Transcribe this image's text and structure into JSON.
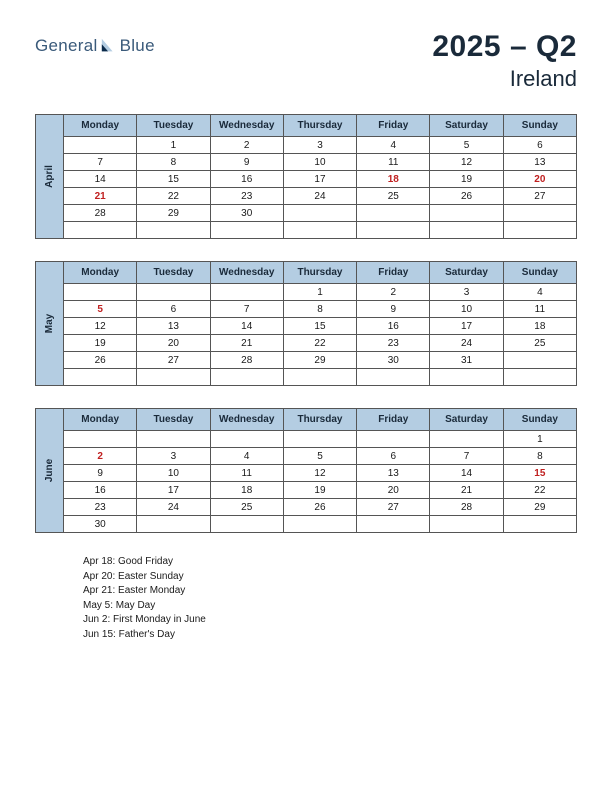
{
  "logo": {
    "text_left": "General",
    "text_right": "Blue"
  },
  "title": {
    "year_quarter": "2025 – Q2",
    "country": "Ireland"
  },
  "day_headers": [
    "Monday",
    "Tuesday",
    "Wednesday",
    "Thursday",
    "Friday",
    "Saturday",
    "Sunday"
  ],
  "colors": {
    "header_bg": "#b4cde2",
    "border": "#555555",
    "text": "#1a2a3a",
    "holiday": "#c02020",
    "logo": "#3a5a7a",
    "logo_accent": "#0a2a4a"
  },
  "months": [
    {
      "name": "April",
      "weeks": [
        [
          {
            "n": ""
          },
          {
            "n": "1"
          },
          {
            "n": "2"
          },
          {
            "n": "3"
          },
          {
            "n": "4"
          },
          {
            "n": "5"
          },
          {
            "n": "6"
          }
        ],
        [
          {
            "n": "7"
          },
          {
            "n": "8"
          },
          {
            "n": "9"
          },
          {
            "n": "10"
          },
          {
            "n": "11"
          },
          {
            "n": "12"
          },
          {
            "n": "13"
          }
        ],
        [
          {
            "n": "14"
          },
          {
            "n": "15"
          },
          {
            "n": "16"
          },
          {
            "n": "17"
          },
          {
            "n": "18",
            "h": true
          },
          {
            "n": "19"
          },
          {
            "n": "20",
            "h": true
          }
        ],
        [
          {
            "n": "21",
            "h": true
          },
          {
            "n": "22"
          },
          {
            "n": "23"
          },
          {
            "n": "24"
          },
          {
            "n": "25"
          },
          {
            "n": "26"
          },
          {
            "n": "27"
          }
        ],
        [
          {
            "n": "28"
          },
          {
            "n": "29"
          },
          {
            "n": "30"
          },
          {
            "n": ""
          },
          {
            "n": ""
          },
          {
            "n": ""
          },
          {
            "n": ""
          }
        ],
        [
          {
            "n": ""
          },
          {
            "n": ""
          },
          {
            "n": ""
          },
          {
            "n": ""
          },
          {
            "n": ""
          },
          {
            "n": ""
          },
          {
            "n": ""
          }
        ]
      ]
    },
    {
      "name": "May",
      "weeks": [
        [
          {
            "n": ""
          },
          {
            "n": ""
          },
          {
            "n": ""
          },
          {
            "n": "1"
          },
          {
            "n": "2"
          },
          {
            "n": "3"
          },
          {
            "n": "4"
          }
        ],
        [
          {
            "n": "5",
            "h": true
          },
          {
            "n": "6"
          },
          {
            "n": "7"
          },
          {
            "n": "8"
          },
          {
            "n": "9"
          },
          {
            "n": "10"
          },
          {
            "n": "11"
          }
        ],
        [
          {
            "n": "12"
          },
          {
            "n": "13"
          },
          {
            "n": "14"
          },
          {
            "n": "15"
          },
          {
            "n": "16"
          },
          {
            "n": "17"
          },
          {
            "n": "18"
          }
        ],
        [
          {
            "n": "19"
          },
          {
            "n": "20"
          },
          {
            "n": "21"
          },
          {
            "n": "22"
          },
          {
            "n": "23"
          },
          {
            "n": "24"
          },
          {
            "n": "25"
          }
        ],
        [
          {
            "n": "26"
          },
          {
            "n": "27"
          },
          {
            "n": "28"
          },
          {
            "n": "29"
          },
          {
            "n": "30"
          },
          {
            "n": "31"
          },
          {
            "n": ""
          }
        ],
        [
          {
            "n": ""
          },
          {
            "n": ""
          },
          {
            "n": ""
          },
          {
            "n": ""
          },
          {
            "n": ""
          },
          {
            "n": ""
          },
          {
            "n": ""
          }
        ]
      ]
    },
    {
      "name": "June",
      "weeks": [
        [
          {
            "n": ""
          },
          {
            "n": ""
          },
          {
            "n": ""
          },
          {
            "n": ""
          },
          {
            "n": ""
          },
          {
            "n": ""
          },
          {
            "n": "1"
          }
        ],
        [
          {
            "n": "2",
            "h": true
          },
          {
            "n": "3"
          },
          {
            "n": "4"
          },
          {
            "n": "5"
          },
          {
            "n": "6"
          },
          {
            "n": "7"
          },
          {
            "n": "8"
          }
        ],
        [
          {
            "n": "9"
          },
          {
            "n": "10"
          },
          {
            "n": "11"
          },
          {
            "n": "12"
          },
          {
            "n": "13"
          },
          {
            "n": "14"
          },
          {
            "n": "15",
            "h": true
          }
        ],
        [
          {
            "n": "16"
          },
          {
            "n": "17"
          },
          {
            "n": "18"
          },
          {
            "n": "19"
          },
          {
            "n": "20"
          },
          {
            "n": "21"
          },
          {
            "n": "22"
          }
        ],
        [
          {
            "n": "23"
          },
          {
            "n": "24"
          },
          {
            "n": "25"
          },
          {
            "n": "26"
          },
          {
            "n": "27"
          },
          {
            "n": "28"
          },
          {
            "n": "29"
          }
        ],
        [
          {
            "n": "30"
          },
          {
            "n": ""
          },
          {
            "n": ""
          },
          {
            "n": ""
          },
          {
            "n": ""
          },
          {
            "n": ""
          },
          {
            "n": ""
          }
        ]
      ]
    }
  ],
  "holidays": [
    "Apr 18: Good Friday",
    "Apr 20: Easter Sunday",
    "Apr 21: Easter Monday",
    "May 5: May Day",
    "Jun 2: First Monday in June",
    "Jun 15: Father's Day"
  ]
}
